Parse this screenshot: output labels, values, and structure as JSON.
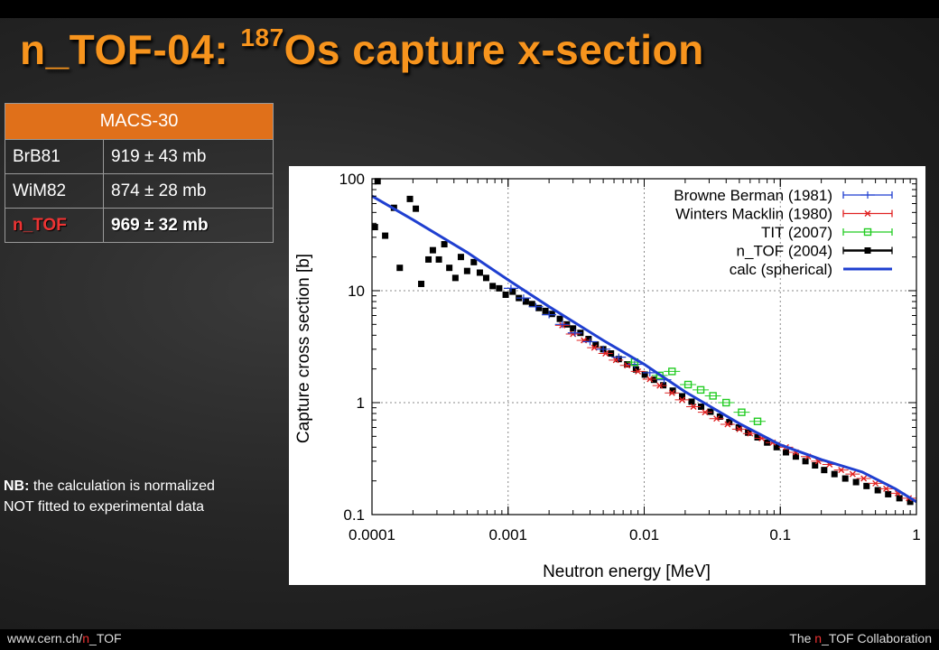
{
  "slide": {
    "title_prefix": "n_TOF-04: ",
    "title_superscript": "187",
    "title_suffix": "Os capture x-section",
    "title_color": "#f7941d"
  },
  "macs_table": {
    "header": "MACS-30",
    "rows": [
      {
        "label": "BrB81",
        "value": "919 ± 43 mb",
        "highlight": false
      },
      {
        "label": "WiM82",
        "value": "874 ± 28 mb",
        "highlight": false
      },
      {
        "label": "n_TOF",
        "value": "969 ± 32 mb",
        "highlight": true
      }
    ]
  },
  "note": {
    "bold": "NB:",
    "line1_rest": " the calculation is normalized",
    "line2": "NOT fitted to experimental data"
  },
  "footer": {
    "left_prefix": "www.cern.ch/",
    "left_red": "n",
    "left_suffix": "_TOF",
    "right_prefix": "The ",
    "right_red": "n",
    "right_suffix": "_TOF Collaboration"
  },
  "chart_data": {
    "type": "scatter",
    "title": "",
    "xlabel": "Neutron energy [MeV]",
    "ylabel": "Capture cross section [b]",
    "xscale": "log",
    "yscale": "log",
    "xlim": [
      0.0001,
      1
    ],
    "ylim": [
      0.1,
      100
    ],
    "xticks": [
      "0.0001",
      "0.001",
      "0.01",
      "0.1",
      "1"
    ],
    "yticks": [
      "100",
      "10",
      "1",
      "0.1"
    ],
    "grid": true,
    "legend_position": "top-right",
    "series": [
      {
        "name": "Browne  Berman (1981)",
        "color": "#1f3fd0",
        "marker": "errorbar",
        "x": [
          0.00105,
          0.0013,
          0.0016,
          0.002,
          0.0025,
          0.0031,
          0.004,
          0.005,
          0.0065,
          0.0085,
          0.011,
          0.014
        ],
        "y": [
          10.5,
          8.6,
          7.2,
          6.1,
          5.0,
          4.2,
          3.5,
          3.0,
          2.55,
          2.2,
          1.85,
          1.6
        ]
      },
      {
        "name": "Winters  Macklin (1980)",
        "color": "#e02020",
        "marker": "x",
        "x": [
          0.0025,
          0.003,
          0.0036,
          0.0043,
          0.0052,
          0.0062,
          0.0075,
          0.009,
          0.011,
          0.013,
          0.016,
          0.019,
          0.023,
          0.028,
          0.034,
          0.041,
          0.05,
          0.06,
          0.073,
          0.088,
          0.11,
          0.13,
          0.16,
          0.19,
          0.23,
          0.28,
          0.34,
          0.41,
          0.5,
          0.6,
          0.73,
          0.88
        ],
        "y": [
          4.9,
          4.1,
          3.6,
          3.1,
          2.75,
          2.4,
          2.15,
          1.9,
          1.62,
          1.42,
          1.22,
          1.06,
          0.92,
          0.82,
          0.72,
          0.64,
          0.58,
          0.53,
          0.48,
          0.44,
          0.4,
          0.36,
          0.33,
          0.3,
          0.28,
          0.25,
          0.23,
          0.21,
          0.19,
          0.17,
          0.155,
          0.14
        ]
      },
      {
        "name": "TIT (2007)",
        "color": "#22cc22",
        "marker": "square",
        "x": [
          0.0085,
          0.013,
          0.016,
          0.021,
          0.026,
          0.032,
          0.04,
          0.052,
          0.068
        ],
        "y": [
          2.3,
          1.75,
          1.9,
          1.45,
          1.3,
          1.15,
          1.0,
          0.82,
          0.68
        ]
      },
      {
        "name": "n_TOF (2004)",
        "color": "#000000",
        "marker": "filled-square",
        "x": [
          0.000105,
          0.00011,
          0.000125,
          0.000145,
          0.00016,
          0.00019,
          0.00021,
          0.00023,
          0.00026,
          0.00028,
          0.00031,
          0.00034,
          0.00037,
          0.00041,
          0.00045,
          0.0005,
          0.00056,
          0.00062,
          0.00069,
          0.00077,
          0.00086,
          0.00096,
          0.00108,
          0.0012,
          0.00135,
          0.0015,
          0.00168,
          0.00188,
          0.0021,
          0.0024,
          0.0027,
          0.003,
          0.0034,
          0.0039,
          0.0044,
          0.005,
          0.0057,
          0.0065,
          0.0075,
          0.0087,
          0.0101,
          0.0118,
          0.0138,
          0.0162,
          0.019,
          0.0223,
          0.0262,
          0.0307,
          0.036,
          0.0422,
          0.0495,
          0.058,
          0.068,
          0.08,
          0.094,
          0.11,
          0.13,
          0.153,
          0.18,
          0.21,
          0.25,
          0.3,
          0.36,
          0.43,
          0.52,
          0.62,
          0.75,
          0.9
        ],
        "y": [
          37,
          95,
          31,
          55,
          16,
          66,
          54,
          11.5,
          19,
          23,
          19,
          26,
          16,
          13,
          20,
          15,
          18,
          14.5,
          13,
          11,
          10.5,
          9.2,
          9.8,
          8.6,
          8.0,
          7.6,
          7.0,
          6.6,
          6.2,
          5.6,
          5.0,
          4.6,
          4.2,
          3.7,
          3.3,
          3.0,
          2.75,
          2.45,
          2.2,
          1.98,
          1.78,
          1.6,
          1.43,
          1.28,
          1.14,
          1.02,
          0.92,
          0.83,
          0.75,
          0.67,
          0.6,
          0.54,
          0.49,
          0.44,
          0.4,
          0.36,
          0.33,
          0.3,
          0.275,
          0.25,
          0.23,
          0.21,
          0.195,
          0.18,
          0.165,
          0.152,
          0.14,
          0.13
        ]
      },
      {
        "name": "calc (spherical)",
        "color": "#1f3fd0",
        "marker": "line",
        "x": [
          0.0001,
          0.0002,
          0.0005,
          0.001,
          0.002,
          0.005,
          0.01,
          0.02,
          0.05,
          0.1,
          0.2,
          0.4,
          0.7,
          1.0
        ],
        "y": [
          70,
          43,
          22,
          12.5,
          7.2,
          3.6,
          2.2,
          1.25,
          0.65,
          0.42,
          0.31,
          0.24,
          0.17,
          0.13
        ]
      }
    ]
  }
}
